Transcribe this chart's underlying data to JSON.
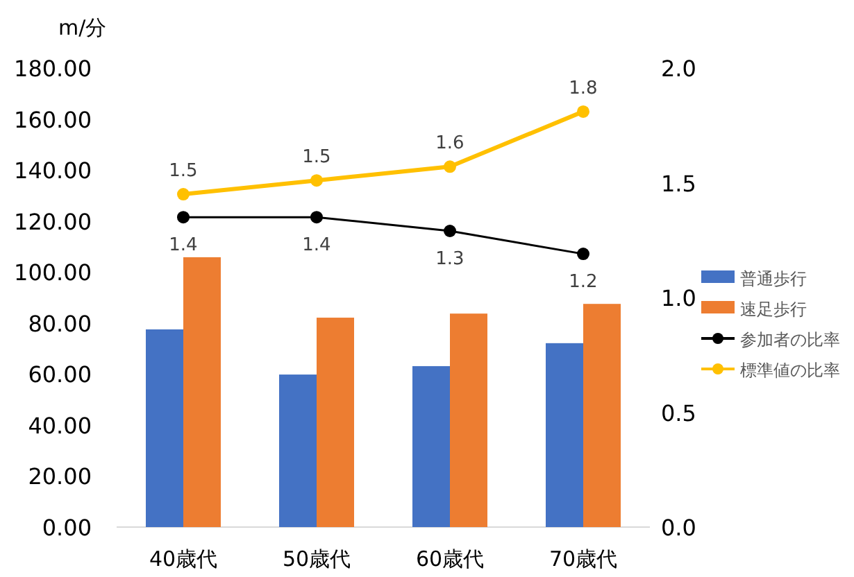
{
  "chart_data": {
    "type": "bar",
    "ylabel": "m/分",
    "categories": [
      "40歳代",
      "50歳代",
      "60歳代",
      "70歳代"
    ],
    "series": [
      {
        "name": "普通歩行",
        "color": "#4472c4",
        "values": [
          77.5,
          59.8,
          63.1,
          72.1
        ]
      },
      {
        "name": "速足歩行",
        "color": "#ed7d31",
        "values": [
          105.8,
          82.1,
          83.7,
          87.5
        ]
      },
      {
        "name": "参加者の比率",
        "color": "#000000",
        "type": "line",
        "axis": "y2",
        "marker": "circle",
        "values": [
          1.35,
          1.35,
          1.29,
          1.19
        ],
        "value_labels": [
          "1.4",
          "1.4",
          "1.3",
          "1.2"
        ]
      },
      {
        "name": "標準値の比率",
        "color": "#ffc000",
        "type": "line",
        "axis": "y2",
        "marker": "circle",
        "values": [
          1.45,
          1.51,
          1.57,
          1.81
        ],
        "value_labels": [
          "1.5",
          "1.5",
          "1.6",
          "1.8"
        ]
      }
    ],
    "ylim": [
      0,
      180
    ],
    "yticks": [
      {
        "value": 0,
        "label": "0.00"
      },
      {
        "value": 20,
        "label": "20.00"
      },
      {
        "value": 40,
        "label": "40.00"
      },
      {
        "value": 60,
        "label": "60.00"
      },
      {
        "value": 80,
        "label": "80.00"
      },
      {
        "value": 100,
        "label": "100.00"
      },
      {
        "value": 120,
        "label": "120.00"
      },
      {
        "value": 140,
        "label": "140.00"
      },
      {
        "value": 160,
        "label": "160.00"
      },
      {
        "value": 180,
        "label": "180.00"
      }
    ],
    "y2lim": [
      0,
      2
    ],
    "y2ticks": [
      {
        "value": 0,
        "label": "0.0"
      },
      {
        "value": 0.5,
        "label": "0.5"
      },
      {
        "value": 1,
        "label": "1.0"
      },
      {
        "value": 1.5,
        "label": "1.5"
      },
      {
        "value": 2,
        "label": "2.0"
      }
    ],
    "legend": "right"
  }
}
